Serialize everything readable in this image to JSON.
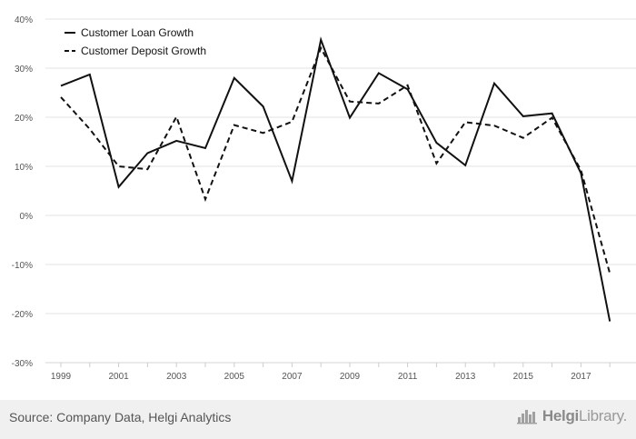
{
  "chart_data": {
    "type": "line",
    "x": [
      1999,
      2000,
      2001,
      2002,
      2003,
      2004,
      2005,
      2006,
      2007,
      2008,
      2009,
      2010,
      2011,
      2012,
      2013,
      2014,
      2015,
      2016,
      2017,
      2018
    ],
    "x_tick_labels": [
      "1999",
      "2001",
      "2003",
      "2005",
      "2007",
      "2009",
      "2011",
      "2013",
      "2015",
      "2017"
    ],
    "y_tick_labels": [
      "40%",
      "30%",
      "20%",
      "10%",
      "0%",
      "-10%",
      "-20%",
      "-30%"
    ],
    "ylim": [
      -30,
      40
    ],
    "grid": true,
    "legend_position": "top-left",
    "series": [
      {
        "name": "Customer Loan Growth",
        "style": "solid",
        "color": "#111111",
        "values": [
          26.4,
          28.7,
          5.8,
          12.7,
          15.2,
          13.7,
          28.0,
          22.2,
          7.0,
          35.8,
          19.9,
          29.0,
          25.7,
          14.8,
          10.2,
          26.9,
          20.2,
          20.8,
          8.6,
          -21.6
        ]
      },
      {
        "name": "Customer Deposit Growth",
        "style": "dashed",
        "color": "#111111",
        "values": [
          24.1,
          17.6,
          10.0,
          9.4,
          20.1,
          3.3,
          18.4,
          16.8,
          19.1,
          34.1,
          23.2,
          22.8,
          26.5,
          10.6,
          19.0,
          18.3,
          15.8,
          19.9,
          9.2,
          -11.8
        ]
      }
    ]
  },
  "footer": {
    "source": "Source: Company Data, Helgi Analytics",
    "brand_prefix": "Helgi",
    "brand_suffix": "Library."
  },
  "colors": {
    "grid": "#e3e3e3",
    "axis_text": "#555555",
    "footer_bg": "#f0f0f0"
  },
  "icons": {
    "brand": "helgi-skyline-logo-icon"
  }
}
